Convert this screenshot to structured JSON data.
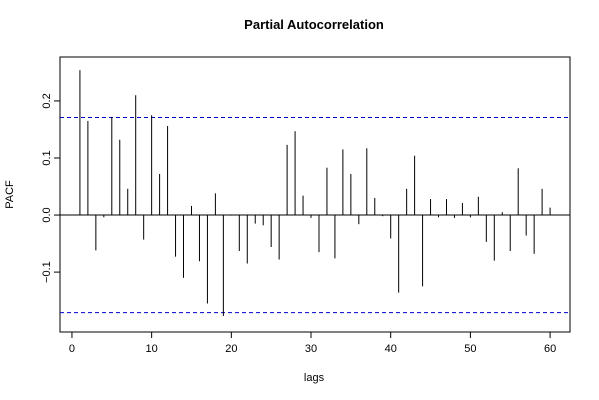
{
  "chart_data": {
    "type": "bar",
    "title": "Partial Autocorrelation",
    "xlabel": "lags",
    "ylabel": "PACF",
    "xlim": [
      -1.5,
      62.5
    ],
    "ylim": [
      -0.205,
      0.277
    ],
    "x_ticks": [
      0,
      10,
      20,
      30,
      40,
      50,
      60
    ],
    "y_ticks": [
      -0.1,
      0.0,
      0.1,
      0.2
    ],
    "y_tick_labels": [
      "−0.1",
      "0.0",
      "0.1",
      "0.2"
    ],
    "confidence_limits": [
      0.171,
      -0.171
    ],
    "colors": {
      "bars": "#000000",
      "confidence": "#0000cc",
      "zero_line": "#000000"
    },
    "lags": [
      1,
      2,
      3,
      4,
      5,
      6,
      7,
      8,
      9,
      10,
      11,
      12,
      13,
      14,
      15,
      16,
      17,
      18,
      19,
      20,
      21,
      22,
      23,
      24,
      25,
      26,
      27,
      28,
      29,
      30,
      31,
      32,
      33,
      34,
      35,
      36,
      37,
      38,
      39,
      40,
      41,
      42,
      43,
      44,
      45,
      46,
      47,
      48,
      49,
      50,
      51,
      52,
      53,
      54,
      55,
      56,
      57,
      58,
      59,
      60
    ],
    "values": [
      0.254,
      0.165,
      -0.062,
      -0.004,
      0.172,
      0.132,
      0.046,
      0.21,
      -0.043,
      0.175,
      0.072,
      0.156,
      -0.073,
      -0.11,
      0.016,
      -0.081,
      -0.155,
      0.038,
      -0.177,
      -0.001,
      -0.063,
      -0.085,
      -0.015,
      -0.018,
      -0.056,
      -0.078,
      0.123,
      0.147,
      0.034,
      -0.005,
      -0.065,
      0.083,
      -0.076,
      0.115,
      0.072,
      -0.016,
      0.117,
      0.03,
      -0.002,
      -0.041,
      -0.136,
      0.046,
      0.104,
      -0.125,
      0.028,
      -0.004,
      0.028,
      -0.005,
      0.021,
      -0.004,
      0.032,
      -0.047,
      -0.08,
      0.005,
      -0.063,
      0.082,
      -0.036,
      -0.068,
      0.046,
      0.013
    ]
  }
}
